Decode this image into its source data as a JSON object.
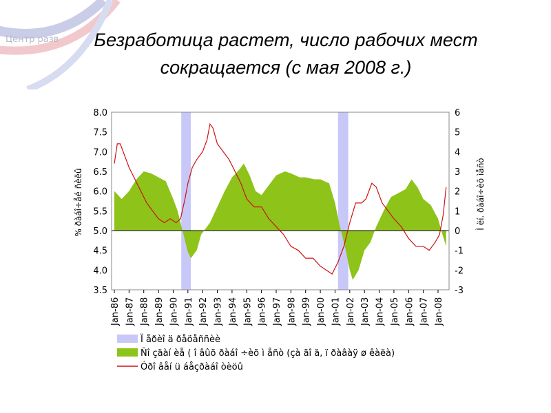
{
  "slide": {
    "logo_text": "Центр разв",
    "title": "Безработица растет, число рабочих мест сокращается (с мая 2008 г.)"
  },
  "chart_data": {
    "type": "line",
    "title": "",
    "ylabel": "% ðàáî÷åé ñèëû",
    "y2label": "Ì ëí. ðàáî÷èõ ìåñò",
    "ylim": [
      3.5,
      8.0
    ],
    "yticks": [
      "3.5",
      "4.0",
      "4.5",
      "5.0",
      "5.5",
      "6.0",
      "6.5",
      "7.0",
      "7.5",
      "8.0"
    ],
    "y2lim": [
      -3,
      6
    ],
    "y2ticks": [
      "-3",
      "-2",
      "-1",
      "0",
      "1",
      "2",
      "3",
      "4",
      "5",
      "6"
    ],
    "xticks": [
      "Jan-86",
      "Jan-87",
      "Jan-88",
      "Jan-89",
      "Jan-90",
      "Jan-91",
      "Jan-92",
      "Jan-93",
      "Jan-94",
      "Jan-95",
      "Jan-96",
      "Jan-97",
      "Jan-98",
      "Jan-99",
      "Jan-00",
      "Jan-01",
      "Jan-02",
      "Jan-03",
      "Jan-04",
      "Jan-05",
      "Jan-06",
      "Jan-07",
      "Jan-08"
    ],
    "xrange": [
      1986,
      2008.6
    ],
    "colors": {
      "recession": "#c8c8f8",
      "employment": "#8ec31a",
      "unemployment": "#d01010"
    },
    "legend": {
      "placement": "bottom",
      "items": [
        "Ï åðèî ä ðåöåññèè",
        "Ñî çäàí èå ( î âûõ ðàáî ÷èõ ì åñò (çà ãî ä, ï ðàâàÿ ø êàëà)",
        "Óðî âåí ü áåçðàáî òèöû"
      ]
    },
    "recessions": [
      [
        1990.55,
        1991.2
      ],
      [
        2001.2,
        2001.9
      ]
    ],
    "series": [
      {
        "name": "employment",
        "axis": "right",
        "x": [
          1986,
          1986.5,
          1987,
          1987.5,
          1988,
          1988.5,
          1989,
          1989.5,
          1990,
          1990.3,
          1990.6,
          1991,
          1991.2,
          1991.6,
          1991.9,
          1992.5,
          1993,
          1993.5,
          1994,
          1994.5,
          1994.8,
          1995.2,
          1995.6,
          1996,
          1996.6,
          1997,
          1997.6,
          1998,
          1998.6,
          1999,
          1999.6,
          2000,
          2000.6,
          2001,
          2001.3,
          2001.7,
          2002,
          2002.2,
          2002.6,
          2003,
          2003.4,
          2003.8,
          2004.3,
          2004.8,
          2005.3,
          2005.8,
          2006.2,
          2006.6,
          2007,
          2007.5,
          2008,
          2008.3,
          2008.55
        ],
        "values": [
          2.0,
          1.6,
          2.0,
          2.6,
          3.0,
          2.9,
          2.7,
          2.5,
          1.6,
          1.0,
          0.1,
          -1.1,
          -1.4,
          -1.0,
          -0.2,
          0.4,
          1.2,
          2.0,
          2.7,
          3.1,
          3.4,
          2.8,
          2.0,
          1.8,
          2.4,
          2.8,
          3.0,
          2.9,
          2.7,
          2.7,
          2.6,
          2.6,
          2.4,
          1.4,
          0.3,
          -0.9,
          -2.0,
          -2.5,
          -2.0,
          -1.0,
          -0.6,
          0.2,
          1.0,
          1.7,
          1.9,
          2.1,
          2.6,
          2.2,
          1.6,
          1.3,
          0.6,
          -0.2,
          -0.8
        ]
      },
      {
        "name": "unemployment",
        "axis": "left",
        "x": [
          1986,
          1986.2,
          1986.4,
          1986.7,
          1987,
          1987.4,
          1987.8,
          1988.2,
          1988.6,
          1989,
          1989.4,
          1989.8,
          1990.2,
          1990.5,
          1990.8,
          1991,
          1991.3,
          1991.6,
          1992,
          1992.3,
          1992.5,
          1992.7,
          1993,
          1993.4,
          1993.8,
          1994.2,
          1994.6,
          1995,
          1995.5,
          1996,
          1996.5,
          1997,
          1997.5,
          1998,
          1998.5,
          1999,
          1999.5,
          2000,
          2000.4,
          2000.8,
          2001.2,
          2001.6,
          2002,
          2002.4,
          2002.8,
          2003.1,
          2003.5,
          2003.8,
          2004.2,
          2004.6,
          2005,
          2005.5,
          2006,
          2006.5,
          2007,
          2007.4,
          2007.8,
          2008.1,
          2008.35,
          2008.55
        ],
        "values": [
          6.7,
          7.2,
          7.2,
          6.9,
          6.6,
          6.3,
          6.0,
          5.7,
          5.5,
          5.3,
          5.2,
          5.3,
          5.2,
          5.3,
          5.8,
          6.2,
          6.6,
          6.8,
          7.0,
          7.3,
          7.7,
          7.6,
          7.2,
          7.0,
          6.8,
          6.5,
          6.2,
          5.8,
          5.6,
          5.6,
          5.3,
          5.1,
          4.9,
          4.6,
          4.5,
          4.3,
          4.3,
          4.1,
          4.0,
          3.9,
          4.2,
          4.6,
          5.2,
          5.7,
          5.7,
          5.8,
          6.2,
          6.1,
          5.7,
          5.5,
          5.3,
          5.1,
          4.8,
          4.6,
          4.6,
          4.5,
          4.7,
          4.9,
          5.4,
          6.1
        ]
      }
    ]
  }
}
